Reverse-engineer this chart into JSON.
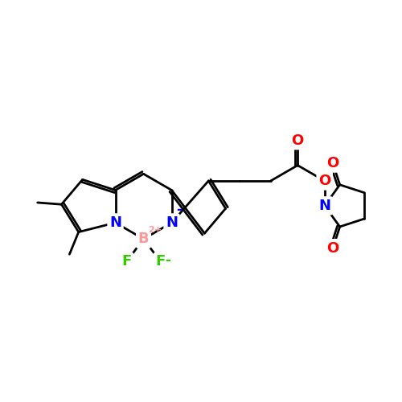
{
  "background_color": "#ffffff",
  "atom_colors": {
    "C": "#000000",
    "N": "#0000ff",
    "B": "#ff9999",
    "F": "#33cc00",
    "O": "#ff0000"
  },
  "bond_color": "#000000",
  "bond_width": 2.0,
  "font_size_atom": 13,
  "font_size_charge": 9
}
